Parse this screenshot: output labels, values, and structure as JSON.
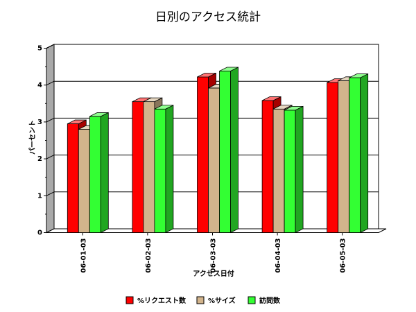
{
  "chart_data": {
    "type": "bar",
    "title": "日別のアクセス統計",
    "xlabel": "アクセス日付",
    "ylabel": "パーセント",
    "categories": [
      "06-01-03",
      "06-02-03",
      "06-03-03",
      "06-04-03",
      "06-05-03"
    ],
    "ylim": [
      0,
      5
    ],
    "yticks": [
      "0",
      "1",
      "2",
      "3",
      "4",
      "5"
    ],
    "grid": true,
    "legend_position": "bottom",
    "series": [
      {
        "name": "%リクエスト数",
        "values": [
          2.95,
          3.55,
          4.22,
          3.58,
          4.07
        ],
        "color": "#ff0000"
      },
      {
        "name": "%サイズ",
        "values": [
          2.8,
          3.55,
          3.92,
          3.35,
          4.12
        ],
        "color": "#d2b48c"
      },
      {
        "name": "訪問数",
        "values": [
          3.15,
          3.35,
          4.38,
          3.32,
          4.2
        ],
        "color": "#33ff33"
      }
    ]
  }
}
